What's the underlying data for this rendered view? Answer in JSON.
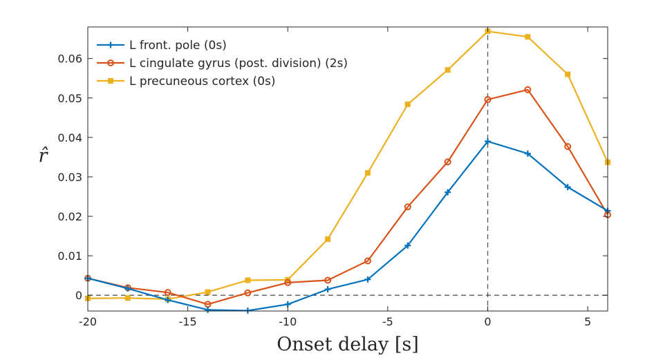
{
  "chart_data": {
    "type": "line",
    "xlabel": "Onset delay [s]",
    "ylabel": "r̂",
    "xlim": [
      -20,
      6
    ],
    "ylim": [
      -0.004,
      0.068
    ],
    "xticks": [
      -20,
      -15,
      -10,
      -5,
      0,
      5
    ],
    "xtick_labels": [
      "-20",
      "-15",
      "-10",
      "-5",
      "0",
      "5"
    ],
    "yticks": [
      0,
      0.01,
      0.02,
      0.03,
      0.04,
      0.05,
      0.06
    ],
    "ytick_labels": [
      "0",
      "0.01",
      "0.02",
      "0.03",
      "0.04",
      "0.05",
      "0.06"
    ],
    "grid": false,
    "legend_position": "top-left",
    "reference_lines": {
      "y": 0,
      "x": 0
    },
    "x": [
      -20,
      -18,
      -16,
      -14,
      -12,
      -10,
      -8,
      -6,
      -4,
      -2,
      0,
      2,
      4,
      6
    ],
    "series": [
      {
        "name": "L front. pole (0s)",
        "color": "#0072BD",
        "marker": "plus",
        "values": [
          0.0043,
          0.0017,
          -0.0012,
          -0.0037,
          -0.0039,
          -0.0023,
          0.0015,
          0.004,
          0.0126,
          0.0261,
          0.039,
          0.0359,
          0.0274,
          0.0214
        ]
      },
      {
        "name": "L cingulate gyrus (post. division) (2s)",
        "color": "#D95319",
        "marker": "circle",
        "values": [
          0.0043,
          0.0019,
          0.0007,
          -0.0023,
          0.0006,
          0.0032,
          0.0038,
          0.0087,
          0.0224,
          0.0338,
          0.0496,
          0.0521,
          0.0377,
          0.0204
        ]
      },
      {
        "name": "L precuneous cortex (0s)",
        "color": "#EDB120",
        "marker": "square",
        "values": [
          -0.0008,
          -0.0007,
          -0.001,
          0.0008,
          0.0038,
          0.0039,
          0.0142,
          0.031,
          0.0484,
          0.0571,
          0.0669,
          0.0655,
          0.056,
          0.0337
        ]
      }
    ]
  }
}
